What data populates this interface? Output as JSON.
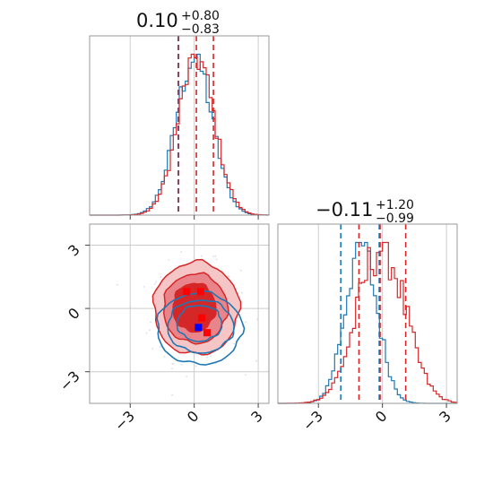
{
  "colors": {
    "red": "#d62728",
    "blue": "#1f77b4",
    "red_fill": "#e8848a",
    "red_fill_light": "#f6c6c6",
    "marker_red": "#ff0000",
    "marker_blue": "#0000ff"
  },
  "chart_data": {
    "type": "corner",
    "x_range": [
      -4.9,
      3.5
    ],
    "y_range": [
      -4.5,
      4.0
    ],
    "ticks": [
      -3,
      0,
      3
    ],
    "tick_labels": [
      "−3",
      "0",
      "3"
    ],
    "grid": true,
    "parameters": [
      {
        "title_main": "0.10",
        "title_sup": "+0.80",
        "title_sub": "−0.83",
        "quantiles_red": [
          -0.73,
          0.1,
          0.9
        ],
        "quantiles_blue": [
          -0.75
        ]
      },
      {
        "title_main": "−0.11",
        "title_sup": "+1.20",
        "title_sub": "−0.99",
        "quantiles_red": [
          -1.1,
          -0.11,
          1.09
        ],
        "quantiles_blue": [
          -1.95,
          -0.15
        ]
      }
    ],
    "series": [
      {
        "color": "blue",
        "marginal_1_mean": 0.0,
        "marginal_1_sd": 0.85,
        "marginal_2_mean": -1.0,
        "marginal_2_sd": 0.75,
        "contour_center": [
          0.2,
          -0.7
        ]
      },
      {
        "color": "red",
        "marginal_1_mean": 0.1,
        "marginal_1_sd": 0.85,
        "marginal_2_mean": -0.05,
        "marginal_2_sd": 1.1,
        "contour_center": [
          0.1,
          0.1
        ]
      }
    ],
    "markers": [
      {
        "x": -0.35,
        "y": 0.8,
        "color": "marker_red"
      },
      {
        "x": 0.3,
        "y": 0.8,
        "color": "marker_red"
      },
      {
        "x": 0.35,
        "y": -0.45,
        "color": "marker_red"
      },
      {
        "x": 0.6,
        "y": -1.15,
        "color": "marker_red"
      },
      {
        "x": 0.2,
        "y": -0.9,
        "color": "marker_blue"
      }
    ]
  }
}
